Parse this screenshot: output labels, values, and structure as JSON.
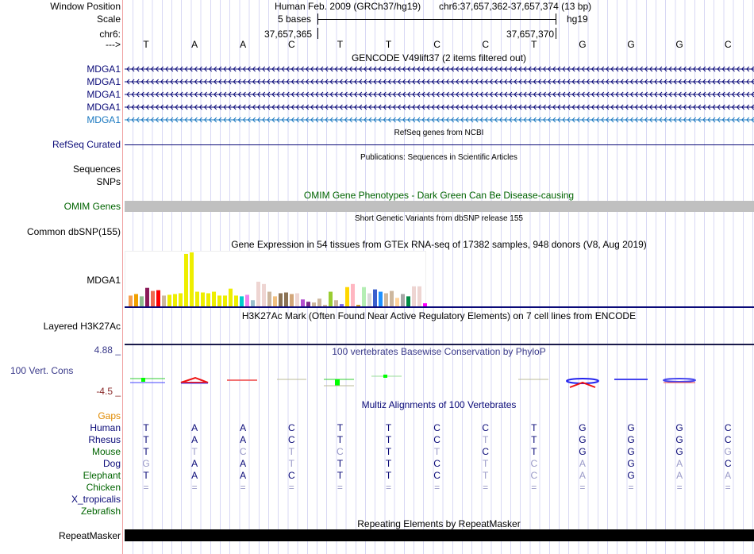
{
  "header": {
    "window_position_label": "Window Position",
    "assembly": "Human Feb. 2009 (GRCh37/hg19)",
    "position": "chr6:37,657,362-37,657,374 (13 bp)",
    "scale_label": "Scale",
    "scale_text": "5 bases",
    "scale_db": "hg19",
    "chrom_label": "chr6:",
    "coord_left": "37,657,365",
    "coord_right": "37,657,370",
    "strand_label": "--->",
    "bases": [
      "T",
      "A",
      "A",
      "C",
      "T",
      "T",
      "C",
      "C",
      "T",
      "G",
      "G",
      "G",
      "C"
    ]
  },
  "tracks": {
    "gencode_title": "GENCODE V49lift37 (2 items filtered out)",
    "gencode_genes": [
      "MDGA1",
      "MDGA1",
      "MDGA1",
      "MDGA1",
      "MDGA1"
    ],
    "gene_colors": [
      "#0a0a78",
      "#0a0a78",
      "#0a0a78",
      "#0a0a78",
      "#1a78c0"
    ],
    "refseq_title": "RefSeq genes from NCBI",
    "refseq_label": "RefSeq Curated",
    "pubs_title": "Publications: Sequences in Scientific Articles",
    "pubs_label_1": "Sequences",
    "pubs_label_2": "SNPs",
    "omim_title": "OMIM Gene Phenotypes - Dark Green Can Be Disease-causing",
    "omim_label": "OMIM Genes",
    "snp_title": "Short Genetic Variants from dbSNP release 155",
    "snp_label": "Common dbSNP(155)",
    "gtex_title": "Gene Expression in 54 tissues from GTEx RNA-seq of 17382 samples, 948 donors (V8, Aug 2019)",
    "gtex_label": "MDGA1",
    "h3k27ac_title": "H3K27Ac Mark (Often Found Near Active Regulatory Elements) on 7 cell lines from ENCODE",
    "h3k27ac_label": "Layered H3K27Ac",
    "phylop_title": "100 vertebrates Basewise Conservation by PhyloP",
    "phylop_label": "100 Vert. Cons",
    "phylop_max": "4.88 _",
    "phylop_min": "-4.5 _",
    "multiz_title": "Multiz Alignments of 100 Vertebrates",
    "gaps_label": "Gaps",
    "species": [
      {
        "name": "Human",
        "color": "#0a0a78",
        "bases": "TAACTTCCTGGGC",
        "faded": "0000000000000"
      },
      {
        "name": "Rhesus",
        "color": "#0a0a78",
        "bases": "TAACTTCTTGGGC",
        "faded": "0000000100000"
      },
      {
        "name": "Mouse",
        "color": "#006400",
        "bases": "TTCTCTTCTGGGG",
        "faded": "0111101000001"
      },
      {
        "name": "Dog",
        "color": "#0a0a78",
        "bases": "GAATTTCTCAGAC",
        "faded": "1001000111010"
      },
      {
        "name": "Elephant",
        "color": "#006400",
        "bases": "TAACTTCTCAGAA",
        "faded": "0000000111011"
      },
      {
        "name": "Chicken",
        "color": "#006400",
        "bases": "=============",
        "faded": "1111111111111"
      },
      {
        "name": "X_tropicalis",
        "color": "#0a0a78",
        "bases": "",
        "faded": ""
      },
      {
        "name": "Zebrafish",
        "color": "#006400",
        "bases": "",
        "faded": ""
      }
    ],
    "repeat_title": "Repeating Elements by RepeatMasker",
    "repeat_label": "RepeatMasker"
  },
  "colors": {
    "match": "#0a0a78",
    "mismatch": "#9a9ac8",
    "omim_bar": "#c0c0c0",
    "gaps": "#e08a00"
  },
  "chart_data": {
    "type": "bar",
    "title": "Gene Expression in 54 tissues from GTEx RNA-seq of 17382 samples, 948 donors (V8, Aug 2019)",
    "values": [
      14,
      16,
      13,
      24,
      20,
      21,
      14,
      15,
      16,
      17,
      68,
      70,
      19,
      18,
      17,
      19,
      14,
      14,
      23,
      14,
      13,
      15,
      8,
      32,
      29,
      19,
      13,
      17,
      18,
      16,
      17,
      9,
      6,
      5,
      10,
      2,
      19,
      8,
      3,
      25,
      29,
      2,
      25,
      17,
      22,
      19,
      17,
      20,
      11,
      16,
      13,
      26,
      26,
      4
    ],
    "colors": [
      "#f5a050",
      "#f0a000",
      "#8fbc8f",
      "#8b1a5a",
      "#ee6a50",
      "#ff0000",
      "#cdb79e",
      "#eeee00",
      "#eeee00",
      "#eeee00",
      "#eeee00",
      "#eeee00",
      "#eeee00",
      "#eeee00",
      "#eeee00",
      "#eeee00",
      "#eeee00",
      "#eeee00",
      "#eeee00",
      "#eeee00",
      "#00cdcd",
      "#ee82ee",
      "#9ac0cd",
      "#eed5d2",
      "#eed5d2",
      "#cdb79e",
      "#f0c080",
      "#8b7355",
      "#8b7355",
      "#d2a679",
      "#eed5d2",
      "#b450d0",
      "#7d2a8b",
      "#cdb79e",
      "#cdb79e",
      "#cdb79e",
      "#9acd32",
      "#cdb79e",
      "#7a67ee",
      "#ffd700",
      "#ffb6c1",
      "#cd9b1d",
      "#b4eeb4",
      "#d9d9d9",
      "#3a5fcd",
      "#1e90ff",
      "#cdb79e",
      "#cdb79e",
      "#ffd39b",
      "#a6a6a6",
      "#008b45",
      "#eed5d2",
      "#eed5d2",
      "#ff00ff"
    ]
  }
}
